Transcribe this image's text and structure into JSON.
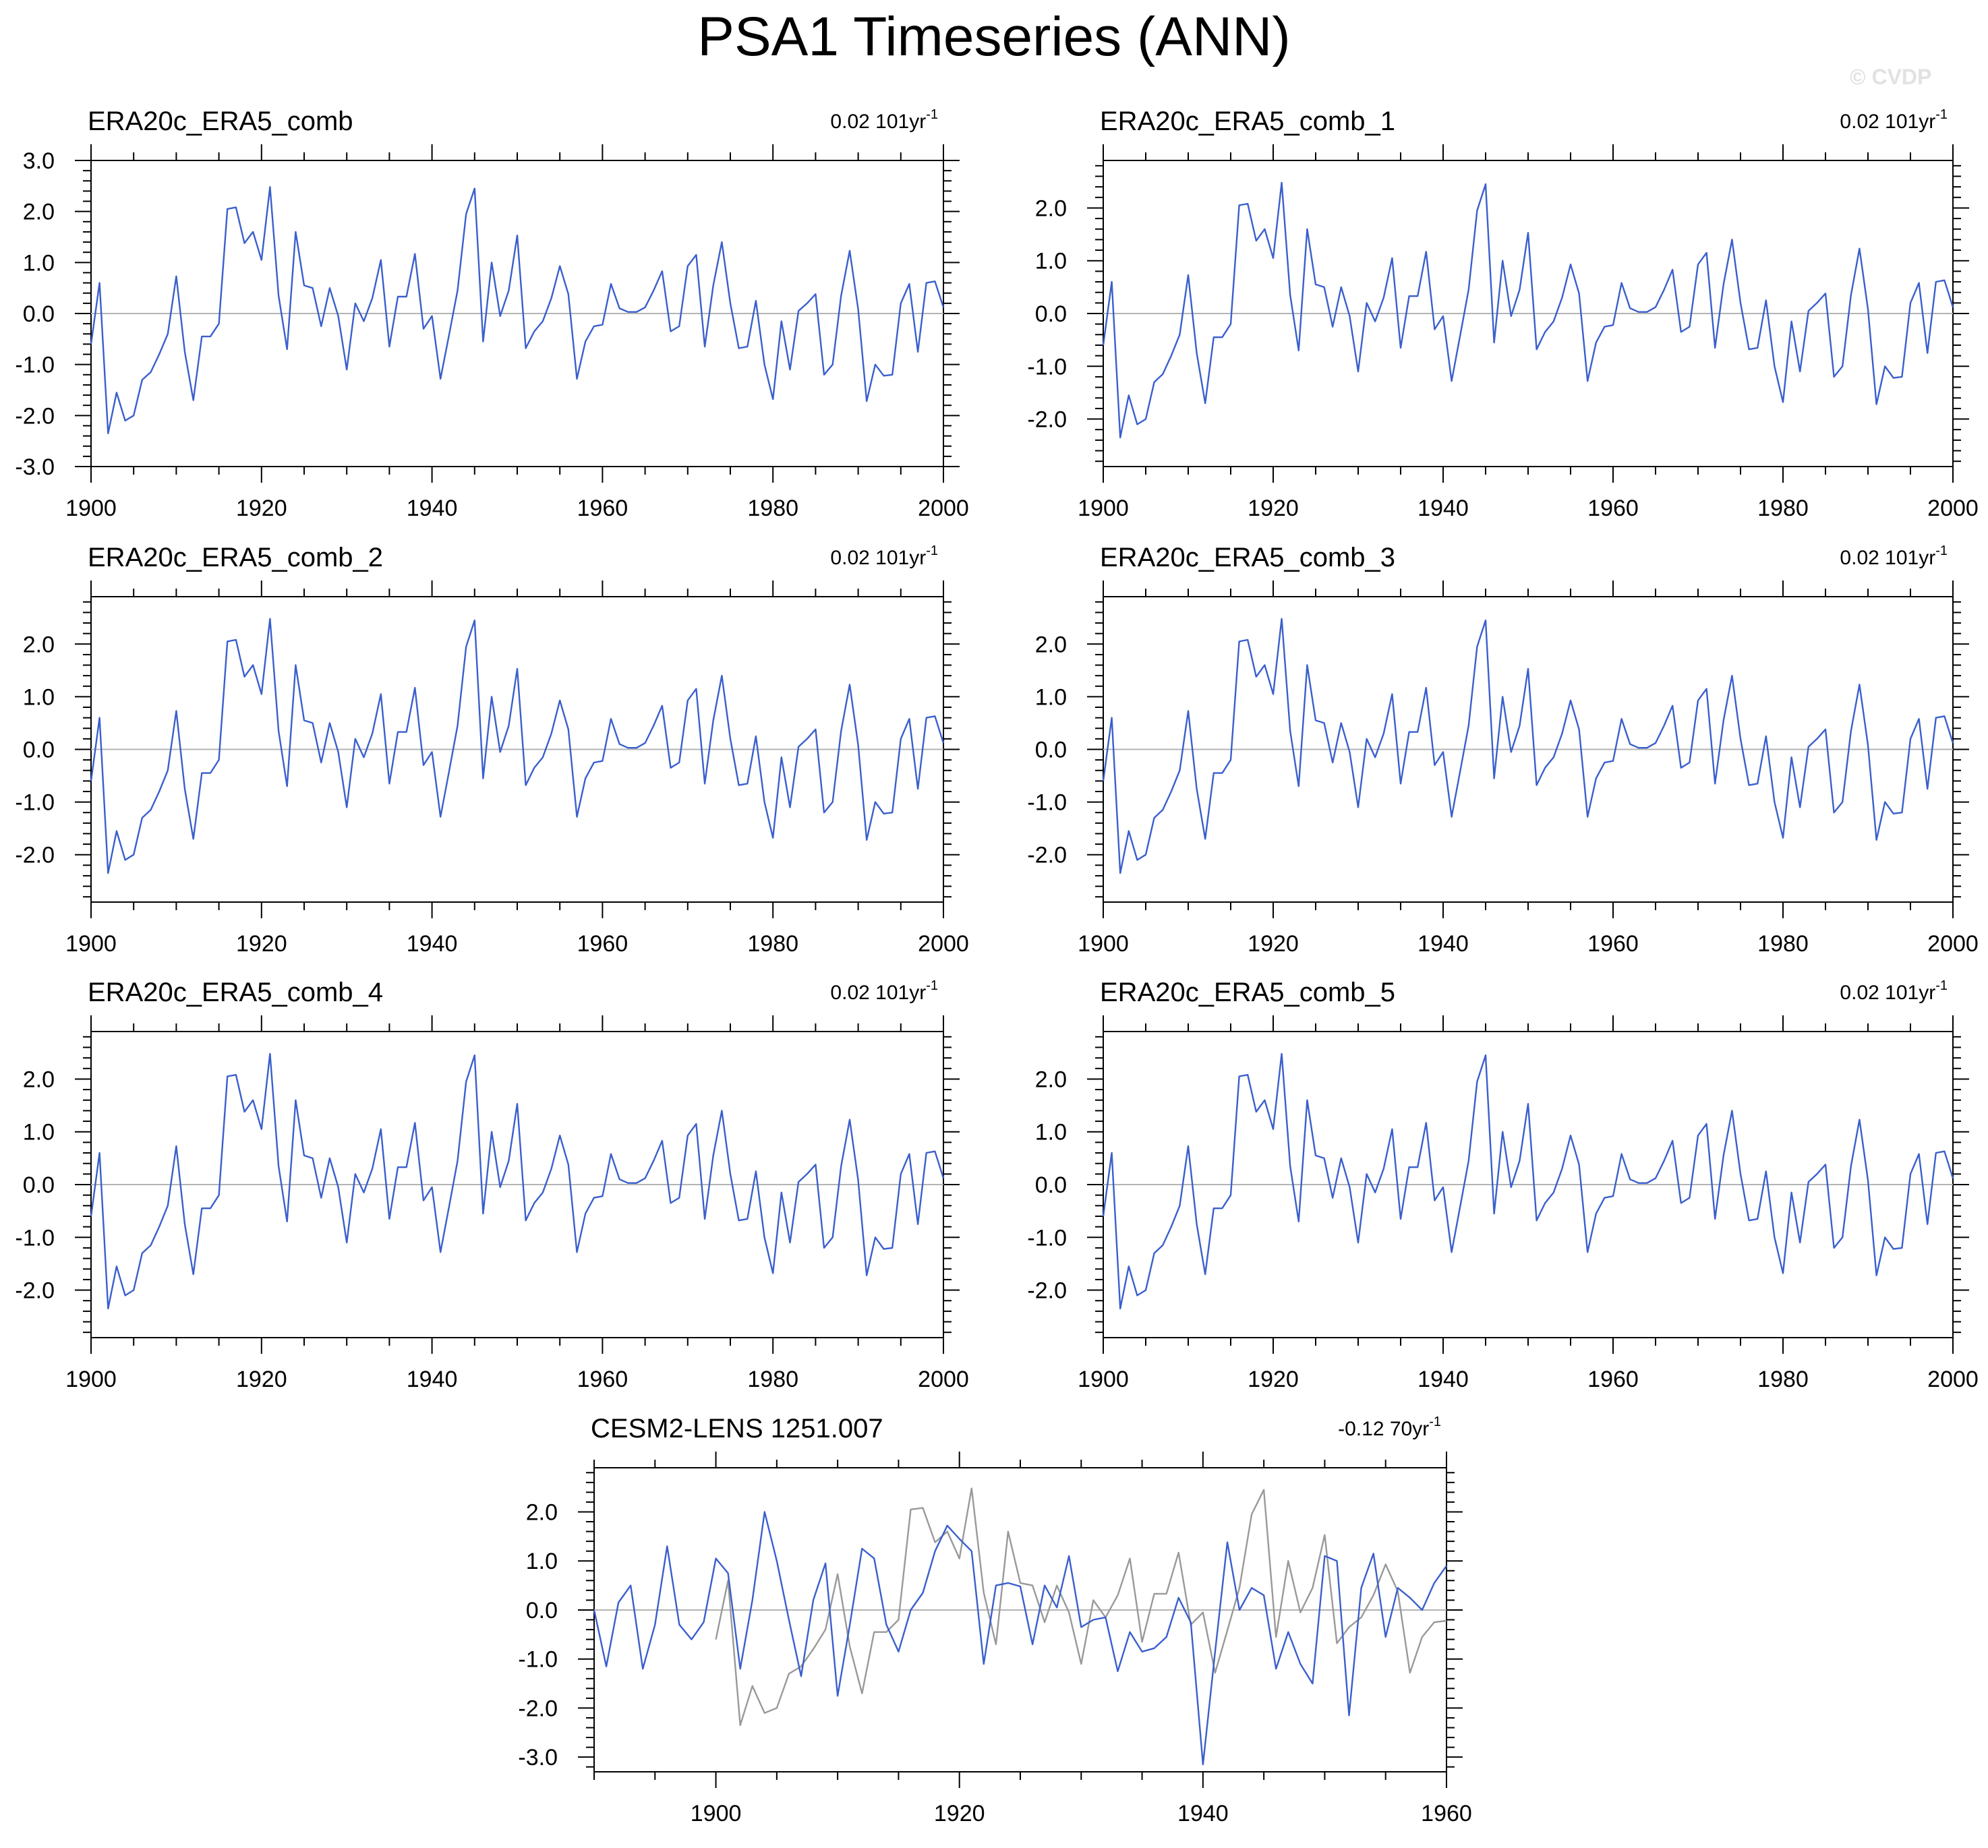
{
  "title": "PSA1 Timeseries (ANN)",
  "watermark": "© CVDP",
  "colors": {
    "series": "#3a5fcd",
    "obs_overlay": "#999999",
    "zero_line": "#b4b4b4",
    "axis": "#000000"
  },
  "chart_data": [
    {
      "type": "line",
      "title": "ERA20c_ERA5_comb",
      "trend": {
        "value": "0.02",
        "unit": "101yr",
        "exp": "-1"
      },
      "xlim": [
        1900,
        2000
      ],
      "ylim": [
        -3,
        3
      ],
      "yticks": [
        "3.0",
        "2.0",
        "1.0",
        "0.0",
        "-1.0",
        "-2.0",
        "-3.0"
      ],
      "xticks": [
        "1900",
        "1920",
        "1940",
        "1960",
        "1980",
        "2000"
      ],
      "series": [
        {
          "x_start": 1900,
          "values": [
            -0.6,
            0.6,
            -2.35,
            -1.55,
            -2.1,
            -2.0,
            -1.3,
            -1.15,
            -0.8,
            -0.4,
            0.73,
            -0.75,
            -1.7,
            -0.45,
            -0.45,
            -0.2,
            2.05,
            2.08,
            1.38,
            1.6,
            1.05,
            2.48,
            0.35,
            -0.7,
            1.6,
            0.55,
            0.5,
            -0.25,
            0.5,
            -0.05,
            -1.1,
            0.2,
            -0.15,
            0.3,
            1.05,
            -0.65,
            0.33,
            0.33,
            1.17,
            -0.3,
            -0.05,
            -1.28,
            -0.42,
            0.45,
            1.95,
            2.45,
            -0.55,
            1.0,
            -0.05,
            0.45,
            1.53,
            -0.68,
            -0.35,
            -0.15,
            0.3,
            0.93,
            0.38,
            -1.28,
            -0.55,
            -0.25,
            -0.22,
            0.58,
            0.1,
            0.03,
            0.03,
            0.12,
            0.45,
            0.83,
            -0.35,
            -0.25,
            0.93,
            1.15,
            -0.65,
            0.55,
            1.4,
            0.2,
            -0.68,
            -0.65,
            0.25,
            -1.0,
            -1.68,
            -0.15,
            -1.1,
            0.05,
            0.2,
            0.38,
            -1.2,
            -1.0,
            0.35,
            1.23,
            0.08,
            -1.72,
            -1.0,
            -1.22,
            -1.2,
            0.2,
            0.58,
            -0.75,
            0.6,
            0.63,
            0.12
          ]
        }
      ]
    },
    {
      "type": "line",
      "title": "ERA20c_ERA5_comb_1",
      "trend": {
        "value": "0.02",
        "unit": "101yr",
        "exp": "-1"
      },
      "xlim": [
        1900,
        2000
      ],
      "ylim": [
        -2.9,
        2.9
      ],
      "yticks": [
        "2.0",
        "1.0",
        "0.0",
        "-1.0",
        "-2.0"
      ],
      "xticks": [
        "1900",
        "1920",
        "1940",
        "1960",
        "1980",
        "2000"
      ],
      "series": [
        {
          "x_start": 1900,
          "values": [
            -0.6,
            0.6,
            -2.35,
            -1.55,
            -2.1,
            -2.0,
            -1.3,
            -1.15,
            -0.8,
            -0.4,
            0.73,
            -0.75,
            -1.7,
            -0.45,
            -0.45,
            -0.2,
            2.05,
            2.08,
            1.38,
            1.6,
            1.05,
            2.48,
            0.35,
            -0.7,
            1.6,
            0.55,
            0.5,
            -0.25,
            0.5,
            -0.05,
            -1.1,
            0.2,
            -0.15,
            0.3,
            1.05,
            -0.65,
            0.33,
            0.33,
            1.17,
            -0.3,
            -0.05,
            -1.28,
            -0.42,
            0.45,
            1.95,
            2.45,
            -0.55,
            1.0,
            -0.05,
            0.45,
            1.53,
            -0.68,
            -0.35,
            -0.15,
            0.3,
            0.93,
            0.38,
            -1.28,
            -0.55,
            -0.25,
            -0.22,
            0.58,
            0.1,
            0.03,
            0.03,
            0.12,
            0.45,
            0.83,
            -0.35,
            -0.25,
            0.93,
            1.15,
            -0.65,
            0.55,
            1.4,
            0.2,
            -0.68,
            -0.65,
            0.25,
            -1.0,
            -1.68,
            -0.15,
            -1.1,
            0.05,
            0.2,
            0.38,
            -1.2,
            -1.0,
            0.35,
            1.23,
            0.08,
            -1.72,
            -1.0,
            -1.22,
            -1.2,
            0.2,
            0.58,
            -0.75,
            0.6,
            0.63,
            0.12
          ]
        }
      ]
    },
    {
      "type": "line",
      "title": "ERA20c_ERA5_comb_2",
      "trend": {
        "value": "0.02",
        "unit": "101yr",
        "exp": "-1"
      },
      "xlim": [
        1900,
        2000
      ],
      "ylim": [
        -2.9,
        2.9
      ],
      "yticks": [
        "2.0",
        "1.0",
        "0.0",
        "-1.0",
        "-2.0"
      ],
      "xticks": [
        "1900",
        "1920",
        "1940",
        "1960",
        "1980",
        "2000"
      ],
      "series": [
        {
          "x_start": 1900,
          "values": [
            -0.6,
            0.6,
            -2.35,
            -1.55,
            -2.1,
            -2.0,
            -1.3,
            -1.15,
            -0.8,
            -0.4,
            0.73,
            -0.75,
            -1.7,
            -0.45,
            -0.45,
            -0.2,
            2.05,
            2.08,
            1.38,
            1.6,
            1.05,
            2.48,
            0.35,
            -0.7,
            1.6,
            0.55,
            0.5,
            -0.25,
            0.5,
            -0.05,
            -1.1,
            0.2,
            -0.15,
            0.3,
            1.05,
            -0.65,
            0.33,
            0.33,
            1.17,
            -0.3,
            -0.05,
            -1.28,
            -0.42,
            0.45,
            1.95,
            2.45,
            -0.55,
            1.0,
            -0.05,
            0.45,
            1.53,
            -0.68,
            -0.35,
            -0.15,
            0.3,
            0.93,
            0.38,
            -1.28,
            -0.55,
            -0.25,
            -0.22,
            0.58,
            0.1,
            0.03,
            0.03,
            0.12,
            0.45,
            0.83,
            -0.35,
            -0.25,
            0.93,
            1.15,
            -0.65,
            0.55,
            1.4,
            0.2,
            -0.68,
            -0.65,
            0.25,
            -1.0,
            -1.68,
            -0.15,
            -1.1,
            0.05,
            0.2,
            0.38,
            -1.2,
            -1.0,
            0.35,
            1.23,
            0.08,
            -1.72,
            -1.0,
            -1.22,
            -1.2,
            0.2,
            0.58,
            -0.75,
            0.6,
            0.63,
            0.12
          ]
        }
      ]
    },
    {
      "type": "line",
      "title": "ERA20c_ERA5_comb_3",
      "trend": {
        "value": "0.02",
        "unit": "101yr",
        "exp": "-1"
      },
      "xlim": [
        1900,
        2000
      ],
      "ylim": [
        -2.9,
        2.9
      ],
      "yticks": [
        "2.0",
        "1.0",
        "0.0",
        "-1.0",
        "-2.0"
      ],
      "xticks": [
        "1900",
        "1920",
        "1940",
        "1960",
        "1980",
        "2000"
      ],
      "series": [
        {
          "x_start": 1900,
          "values": [
            -0.6,
            0.6,
            -2.35,
            -1.55,
            -2.1,
            -2.0,
            -1.3,
            -1.15,
            -0.8,
            -0.4,
            0.73,
            -0.75,
            -1.7,
            -0.45,
            -0.45,
            -0.2,
            2.05,
            2.08,
            1.38,
            1.6,
            1.05,
            2.48,
            0.35,
            -0.7,
            1.6,
            0.55,
            0.5,
            -0.25,
            0.5,
            -0.05,
            -1.1,
            0.2,
            -0.15,
            0.3,
            1.05,
            -0.65,
            0.33,
            0.33,
            1.17,
            -0.3,
            -0.05,
            -1.28,
            -0.42,
            0.45,
            1.95,
            2.45,
            -0.55,
            1.0,
            -0.05,
            0.45,
            1.53,
            -0.68,
            -0.35,
            -0.15,
            0.3,
            0.93,
            0.38,
            -1.28,
            -0.55,
            -0.25,
            -0.22,
            0.58,
            0.1,
            0.03,
            0.03,
            0.12,
            0.45,
            0.83,
            -0.35,
            -0.25,
            0.93,
            1.15,
            -0.65,
            0.55,
            1.4,
            0.2,
            -0.68,
            -0.65,
            0.25,
            -1.0,
            -1.68,
            -0.15,
            -1.1,
            0.05,
            0.2,
            0.38,
            -1.2,
            -1.0,
            0.35,
            1.23,
            0.08,
            -1.72,
            -1.0,
            -1.22,
            -1.2,
            0.2,
            0.58,
            -0.75,
            0.6,
            0.63,
            0.12
          ]
        }
      ]
    },
    {
      "type": "line",
      "title": "ERA20c_ERA5_comb_4",
      "trend": {
        "value": "0.02",
        "unit": "101yr",
        "exp": "-1"
      },
      "xlim": [
        1900,
        2000
      ],
      "ylim": [
        -2.9,
        2.9
      ],
      "yticks": [
        "2.0",
        "1.0",
        "0.0",
        "-1.0",
        "-2.0"
      ],
      "xticks": [
        "1900",
        "1920",
        "1940",
        "1960",
        "1980",
        "2000"
      ],
      "series": [
        {
          "x_start": 1900,
          "values": [
            -0.6,
            0.6,
            -2.35,
            -1.55,
            -2.1,
            -2.0,
            -1.3,
            -1.15,
            -0.8,
            -0.4,
            0.73,
            -0.75,
            -1.7,
            -0.45,
            -0.45,
            -0.2,
            2.05,
            2.08,
            1.38,
            1.6,
            1.05,
            2.48,
            0.35,
            -0.7,
            1.6,
            0.55,
            0.5,
            -0.25,
            0.5,
            -0.05,
            -1.1,
            0.2,
            -0.15,
            0.3,
            1.05,
            -0.65,
            0.33,
            0.33,
            1.17,
            -0.3,
            -0.05,
            -1.28,
            -0.42,
            0.45,
            1.95,
            2.45,
            -0.55,
            1.0,
            -0.05,
            0.45,
            1.53,
            -0.68,
            -0.35,
            -0.15,
            0.3,
            0.93,
            0.38,
            -1.28,
            -0.55,
            -0.25,
            -0.22,
            0.58,
            0.1,
            0.03,
            0.03,
            0.12,
            0.45,
            0.83,
            -0.35,
            -0.25,
            0.93,
            1.15,
            -0.65,
            0.55,
            1.4,
            0.2,
            -0.68,
            -0.65,
            0.25,
            -1.0,
            -1.68,
            -0.15,
            -1.1,
            0.05,
            0.2,
            0.38,
            -1.2,
            -1.0,
            0.35,
            1.23,
            0.08,
            -1.72,
            -1.0,
            -1.22,
            -1.2,
            0.2,
            0.58,
            -0.75,
            0.6,
            0.63,
            0.12
          ]
        }
      ]
    },
    {
      "type": "line",
      "title": "ERA20c_ERA5_comb_5",
      "trend": {
        "value": "0.02",
        "unit": "101yr",
        "exp": "-1"
      },
      "xlim": [
        1900,
        2000
      ],
      "ylim": [
        -2.9,
        2.9
      ],
      "yticks": [
        "2.0",
        "1.0",
        "0.0",
        "-1.0",
        "-2.0"
      ],
      "xticks": [
        "1900",
        "1920",
        "1940",
        "1960",
        "1980",
        "2000"
      ],
      "series": [
        {
          "x_start": 1900,
          "values": [
            -0.6,
            0.6,
            -2.35,
            -1.55,
            -2.1,
            -2.0,
            -1.3,
            -1.15,
            -0.8,
            -0.4,
            0.73,
            -0.75,
            -1.7,
            -0.45,
            -0.45,
            -0.2,
            2.05,
            2.08,
            1.38,
            1.6,
            1.05,
            2.48,
            0.35,
            -0.7,
            1.6,
            0.55,
            0.5,
            -0.25,
            0.5,
            -0.05,
            -1.1,
            0.2,
            -0.15,
            0.3,
            1.05,
            -0.65,
            0.33,
            0.33,
            1.17,
            -0.3,
            -0.05,
            -1.28,
            -0.42,
            0.45,
            1.95,
            2.45,
            -0.55,
            1.0,
            -0.05,
            0.45,
            1.53,
            -0.68,
            -0.35,
            -0.15,
            0.3,
            0.93,
            0.38,
            -1.28,
            -0.55,
            -0.25,
            -0.22,
            0.58,
            0.1,
            0.03,
            0.03,
            0.12,
            0.45,
            0.83,
            -0.35,
            -0.25,
            0.93,
            1.15,
            -0.65,
            0.55,
            1.4,
            0.2,
            -0.68,
            -0.65,
            0.25,
            -1.0,
            -1.68,
            -0.15,
            -1.1,
            0.05,
            0.2,
            0.38,
            -1.2,
            -1.0,
            0.35,
            1.23,
            0.08,
            -1.72,
            -1.0,
            -1.22,
            -1.2,
            0.2,
            0.58,
            -0.75,
            0.6,
            0.63,
            0.12
          ]
        }
      ]
    },
    {
      "type": "line",
      "title": "CESM2-LENS 1251.007",
      "trend": {
        "value": "-0.12",
        "unit": "70yr",
        "exp": "-1"
      },
      "xlim": [
        1890,
        1960
      ],
      "ylim": [
        -3.3,
        2.9
      ],
      "yticks": [
        "2.0",
        "1.0",
        "0.0",
        "-1.0",
        "-2.0",
        "-3.0"
      ],
      "xticks": [
        "1900",
        "1920",
        "1940",
        "1960"
      ],
      "series": [
        {
          "x_start": 1890,
          "values": [
            0.0,
            -1.15,
            0.15,
            0.5,
            -1.2,
            -0.3,
            1.3,
            -0.3,
            -0.6,
            -0.25,
            1.05,
            0.75,
            -1.2,
            0.2,
            2.0,
            1.0,
            -0.2,
            -1.35,
            0.2,
            0.95,
            -1.75,
            -0.3,
            1.25,
            1.05,
            -0.3,
            -0.85,
            0.0,
            0.35,
            1.2,
            1.72,
            1.45,
            1.2,
            -1.1,
            0.5,
            0.55,
            0.48,
            -0.7,
            0.5,
            0.05,
            1.1,
            -0.35,
            -0.2,
            -0.15,
            -1.25,
            -0.45,
            -0.85,
            -0.78,
            -0.55,
            0.25,
            -0.25,
            -3.15,
            -0.85,
            1.38,
            0.0,
            0.45,
            0.3,
            -1.2,
            -0.45,
            -1.1,
            -1.5,
            1.1,
            1.0,
            -2.15,
            0.45,
            1.15,
            -0.55,
            0.45,
            0.25,
            0.0,
            0.55,
            0.9
          ]
        },
        {
          "x_start": 1900,
          "values": [
            -0.6,
            0.6,
            -2.35,
            -1.55,
            -2.1,
            -2.0,
            -1.3,
            -1.15,
            -0.8,
            -0.4,
            0.73,
            -0.75,
            -1.7,
            -0.45,
            -0.45,
            -0.2,
            2.05,
            2.08,
            1.38,
            1.6,
            1.05,
            2.48,
            0.35,
            -0.7,
            1.6,
            0.55,
            0.5,
            -0.25,
            0.5,
            -0.05,
            -1.1,
            0.2,
            -0.15,
            0.3,
            1.05,
            -0.65,
            0.33,
            0.33,
            1.17,
            -0.3,
            -0.05,
            -1.28,
            -0.42,
            0.45,
            1.95,
            2.45,
            -0.55,
            1.0,
            -0.05,
            0.45,
            1.53,
            -0.68,
            -0.35,
            -0.15,
            0.3,
            0.93,
            0.38,
            -1.28,
            -0.55,
            -0.25,
            -0.22
          ]
        }
      ]
    }
  ]
}
